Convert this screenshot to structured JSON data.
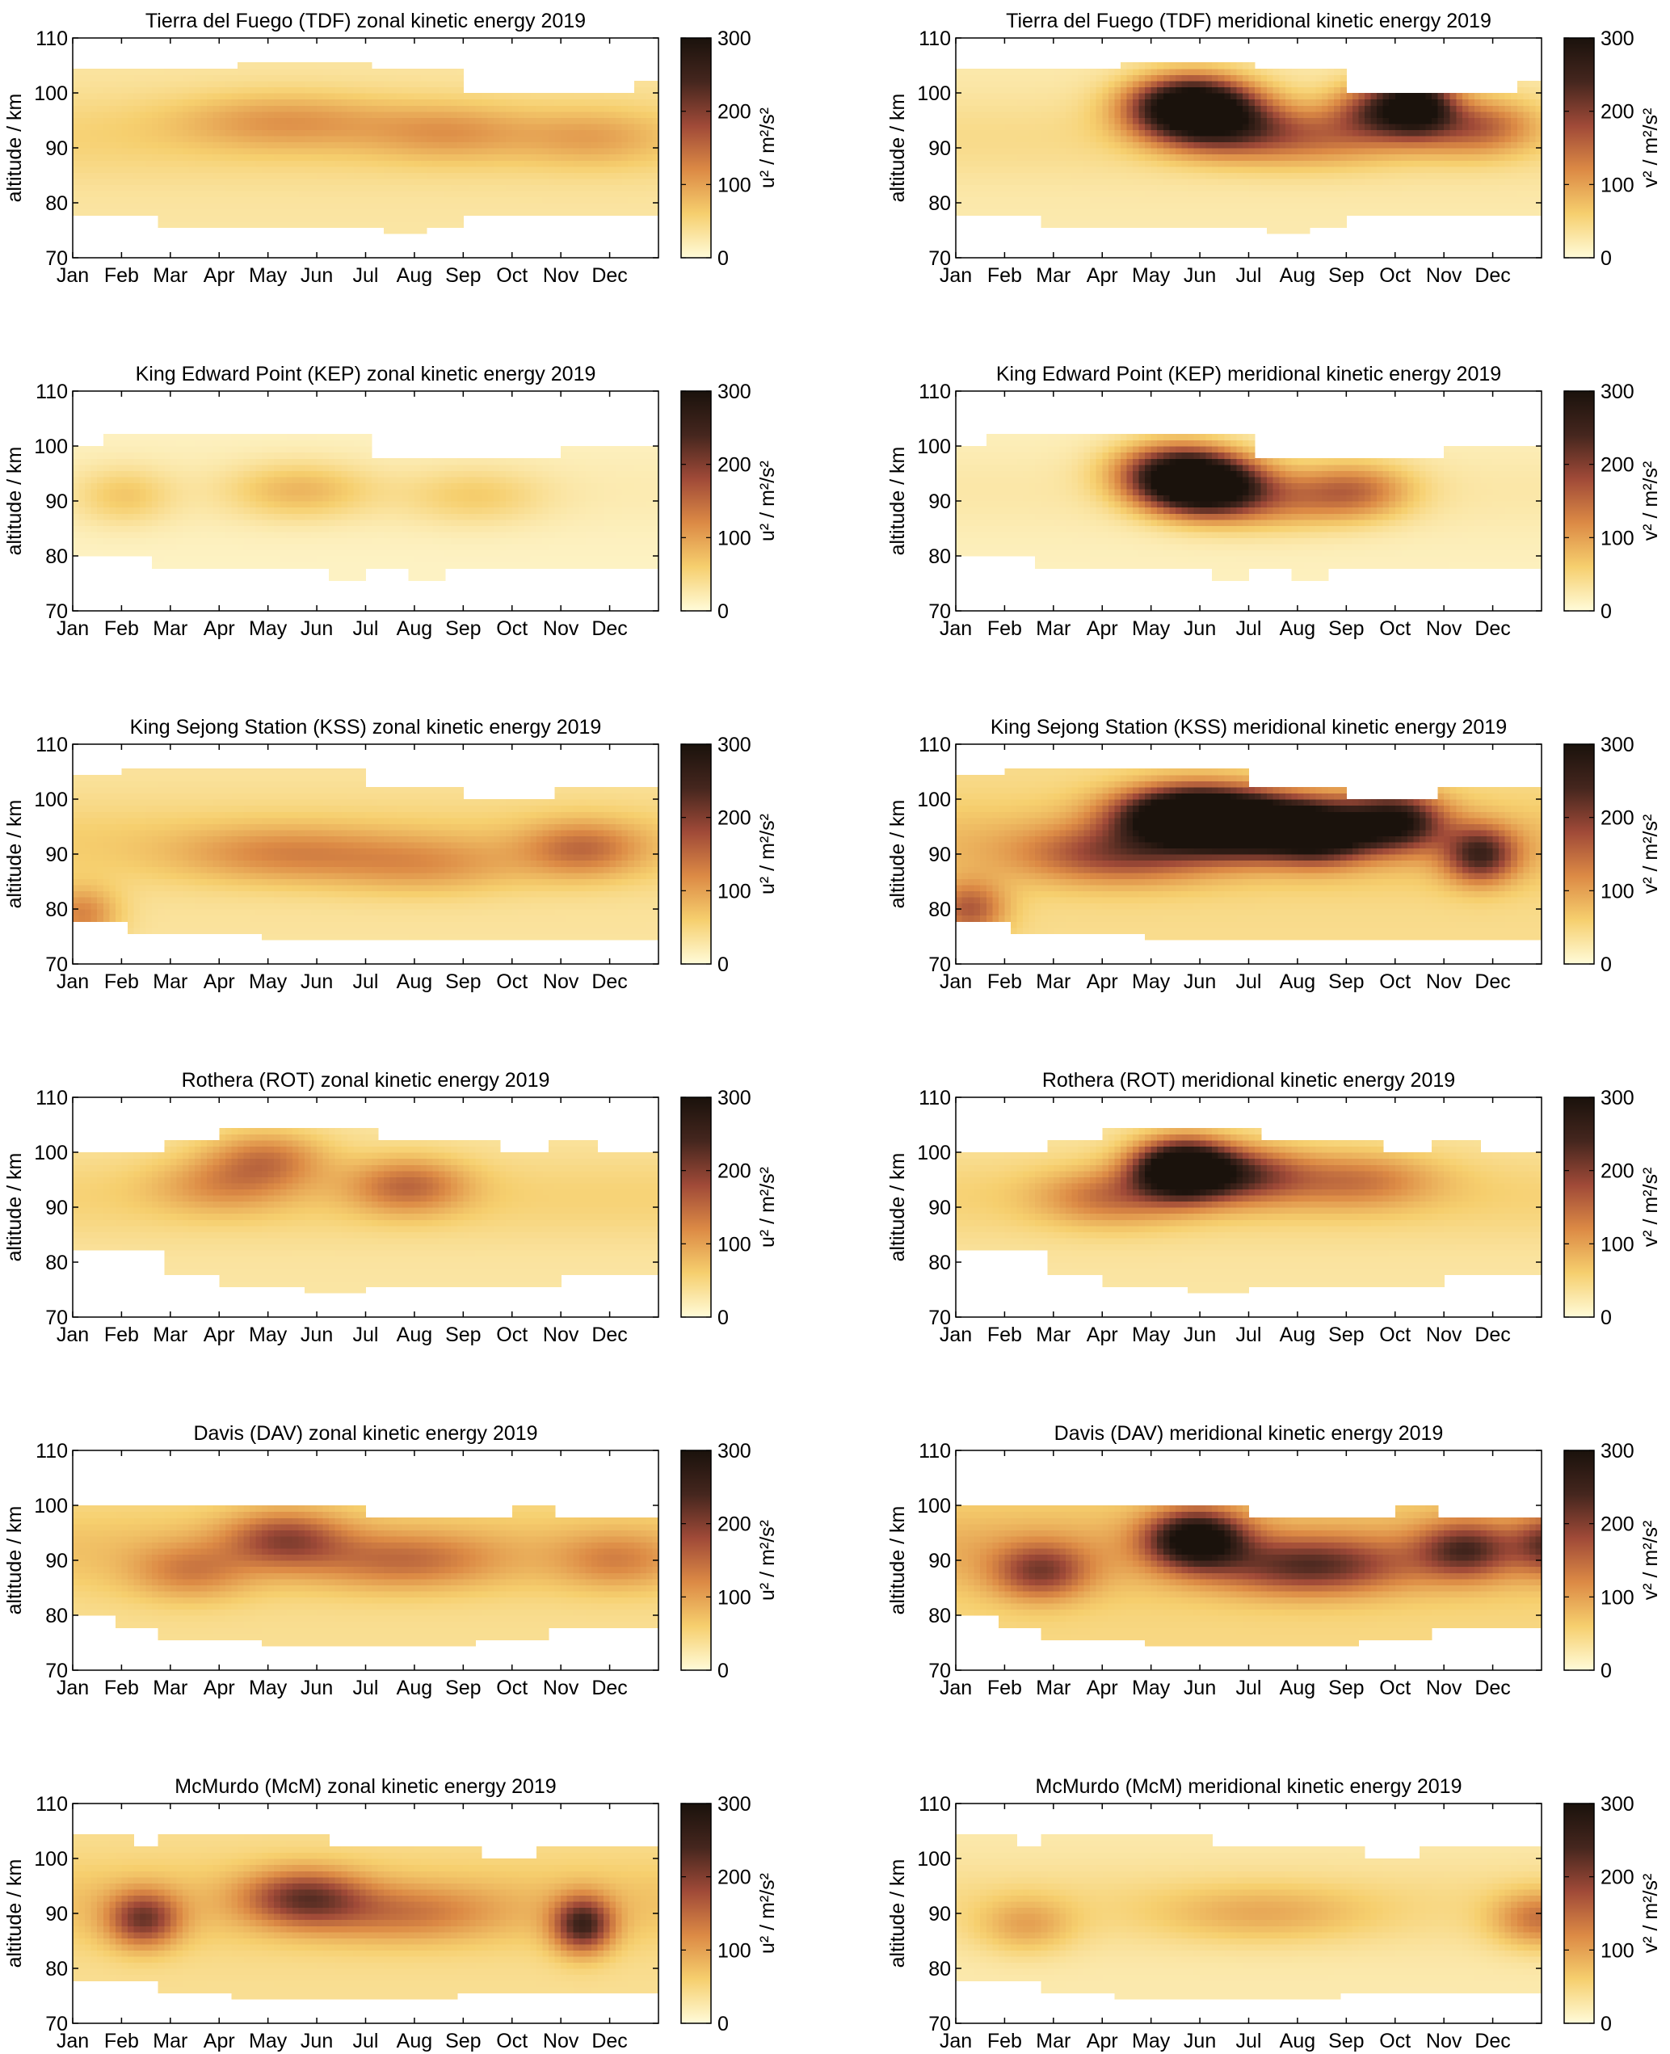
{
  "colorbar": {
    "ticks": [
      "0",
      "100",
      "200",
      "300"
    ],
    "colors": [
      "#fffbd9",
      "#f6cf6e",
      "#dc8a45",
      "#a04a38",
      "#45261e",
      "#1a120c"
    ],
    "range": [
      0,
      300
    ]
  },
  "axes": {
    "ylabel": "altitude / km",
    "yticks": [
      "70",
      "80",
      "90",
      "100",
      "110"
    ],
    "xticks": [
      "Jan",
      "Feb",
      "Mar",
      "Apr",
      "May",
      "Jun",
      "Jul",
      "Aug",
      "Sep",
      "Oct",
      "Nov",
      "Dec"
    ],
    "cb_label_zonal": "u² / m²/s²",
    "cb_label_merid": "v² / m²/s²"
  },
  "chart_data": [
    {
      "type": "heatmap",
      "title": "Tierra del Fuego (TDF) zonal kinetic energy 2019",
      "component": "zonal",
      "ylim": [
        70,
        110
      ],
      "zlim": [
        0,
        300
      ],
      "top": [
        [
          0,
          104
        ],
        [
          3.6,
          106
        ],
        [
          6.5,
          104
        ],
        [
          8.4,
          100
        ],
        [
          12,
          102
        ],
        [
          13,
          104
        ]
      ],
      "bottom": [
        [
          0,
          78
        ],
        [
          2,
          76
        ],
        [
          6.7,
          74
        ],
        [
          7.6,
          76
        ],
        [
          8.4,
          78
        ],
        [
          13,
          78
        ]
      ],
      "blobs": [
        [
          4.5,
          95,
          9,
          60
        ],
        [
          8,
          93,
          7,
          55
        ],
        [
          11,
          92,
          6,
          45
        ]
      ],
      "base": 50
    },
    {
      "type": "heatmap",
      "title": "Tierra del Fuego (TDF) meridional kinetic energy 2019",
      "component": "meridional",
      "ylim": [
        70,
        110
      ],
      "zlim": [
        0,
        300
      ],
      "top": [
        [
          0,
          104
        ],
        [
          3.6,
          106
        ],
        [
          6.5,
          104
        ],
        [
          8.4,
          100
        ],
        [
          12,
          102
        ],
        [
          13,
          104
        ]
      ],
      "bottom": [
        [
          0,
          78
        ],
        [
          2,
          76
        ],
        [
          6.7,
          74
        ],
        [
          7.6,
          76
        ],
        [
          8.4,
          78
        ],
        [
          13,
          78
        ]
      ],
      "blobs": [
        [
          5.0,
          98,
          5,
          320
        ],
        [
          5.5,
          94,
          6,
          150
        ],
        [
          9.0,
          97,
          4,
          160
        ],
        [
          9.8,
          98,
          3,
          220
        ],
        [
          11,
          94,
          5,
          120
        ],
        [
          7.5,
          92,
          8,
          90
        ]
      ],
      "base": 40
    },
    {
      "type": "heatmap",
      "title": "King Edward Point (KEP) zonal kinetic energy 2019",
      "component": "zonal",
      "ylim": [
        70,
        110
      ],
      "zlim": [
        0,
        300
      ],
      "top": [
        [
          0,
          100
        ],
        [
          0.8,
          102
        ],
        [
          3.8,
          102
        ],
        [
          6.5,
          98
        ],
        [
          8.4,
          98
        ],
        [
          10.5,
          100
        ],
        [
          12.7,
          102
        ],
        [
          13,
          102
        ]
      ],
      "bottom": [
        [
          0,
          80
        ],
        [
          1.8,
          78
        ],
        [
          5.6,
          76
        ],
        [
          6.4,
          78
        ],
        [
          7.3,
          76
        ],
        [
          8,
          78
        ],
        [
          13,
          78
        ]
      ],
      "blobs": [
        [
          1.1,
          91,
          4,
          45
        ],
        [
          4.8,
          92,
          6,
          60
        ],
        [
          8.5,
          91,
          6,
          40
        ]
      ],
      "base": 20
    },
    {
      "type": "heatmap",
      "title": "King Edward Point (KEP) meridional kinetic energy 2019",
      "component": "meridional",
      "ylim": [
        70,
        110
      ],
      "zlim": [
        0,
        300
      ],
      "top": [
        [
          0,
          100
        ],
        [
          0.8,
          102
        ],
        [
          3.8,
          102
        ],
        [
          6.5,
          98
        ],
        [
          8.4,
          98
        ],
        [
          10.5,
          100
        ],
        [
          12.7,
          102
        ],
        [
          13,
          102
        ]
      ],
      "bottom": [
        [
          0,
          80
        ],
        [
          1.8,
          78
        ],
        [
          5.6,
          76
        ],
        [
          6.4,
          78
        ],
        [
          7.3,
          76
        ],
        [
          8,
          78
        ],
        [
          13,
          78
        ]
      ],
      "blobs": [
        [
          5.2,
          93,
          5,
          330
        ],
        [
          4.6,
          96,
          5,
          150
        ],
        [
          8.4,
          92,
          5,
          110
        ],
        [
          6.5,
          90,
          7,
          80
        ]
      ],
      "base": 25
    },
    {
      "type": "heatmap",
      "title": "King Sejong Station (KSS) zonal kinetic energy 2019",
      "component": "zonal",
      "ylim": [
        70,
        110
      ],
      "zlim": [
        0,
        300
      ],
      "top": [
        [
          0,
          104
        ],
        [
          1.2,
          106
        ],
        [
          5,
          106
        ],
        [
          6.4,
          102
        ],
        [
          8.4,
          100
        ],
        [
          10.4,
          102
        ],
        [
          13,
          102
        ]
      ],
      "bottom": [
        [
          0,
          78
        ],
        [
          1.3,
          76
        ],
        [
          4.2,
          74
        ],
        [
          6.7,
          74
        ],
        [
          7.5,
          74
        ],
        [
          13,
          78
        ]
      ],
      "blobs": [
        [
          4.5,
          90,
          9,
          65
        ],
        [
          10.8,
          91,
          5,
          90
        ],
        [
          7.5,
          88,
          8,
          55
        ],
        [
          0.2,
          79,
          3,
          90
        ]
      ],
      "base": 55
    },
    {
      "type": "heatmap",
      "title": "King Sejong Station (KSS) meridional kinetic energy 2019",
      "component": "meridional",
      "ylim": [
        70,
        110
      ],
      "zlim": [
        0,
        300
      ],
      "top": [
        [
          0,
          104
        ],
        [
          1.2,
          106
        ],
        [
          5,
          106
        ],
        [
          6.4,
          102
        ],
        [
          8.4,
          100
        ],
        [
          10.4,
          102
        ],
        [
          13,
          102
        ]
      ],
      "bottom": [
        [
          0,
          78
        ],
        [
          1.3,
          76
        ],
        [
          4.2,
          74
        ],
        [
          6.7,
          74
        ],
        [
          7.5,
          74
        ],
        [
          13,
          78
        ]
      ],
      "blobs": [
        [
          5.0,
          97,
          6,
          380
        ],
        [
          6.5,
          95,
          6,
          300
        ],
        [
          7.8,
          94,
          4,
          220
        ],
        [
          9.3,
          96,
          4,
          240
        ],
        [
          11.1,
          90,
          3,
          180
        ],
        [
          3.5,
          90,
          8,
          120
        ],
        [
          0.3,
          80,
          3,
          120
        ]
      ],
      "base": 70
    },
    {
      "type": "heatmap",
      "title": "Rothera (ROT) zonal kinetic energy 2019",
      "component": "zonal",
      "ylim": [
        70,
        110
      ],
      "zlim": [
        0,
        300
      ],
      "top": [
        [
          0,
          100
        ],
        [
          1.9,
          100
        ],
        [
          2,
          102
        ],
        [
          3.2,
          104
        ],
        [
          5.4,
          104
        ],
        [
          6.6,
          102
        ],
        [
          9.2,
          100
        ],
        [
          10.2,
          102
        ],
        [
          11.3,
          100
        ],
        [
          13,
          102
        ]
      ],
      "bottom": [
        [
          0,
          82
        ],
        [
          2,
          82
        ],
        [
          2.1,
          78
        ],
        [
          3.2,
          76
        ],
        [
          5.1,
          74
        ],
        [
          6.4,
          76
        ],
        [
          7.7,
          76
        ],
        [
          10.5,
          78
        ],
        [
          13,
          78
        ]
      ],
      "blobs": [
        [
          4.1,
          99,
          5,
          90
        ],
        [
          7.1,
          94,
          5,
          100
        ],
        [
          3.2,
          94,
          6,
          60
        ]
      ],
      "base": 50
    },
    {
      "type": "heatmap",
      "title": "Rothera (ROT) meridional kinetic energy 2019",
      "component": "meridional",
      "ylim": [
        70,
        110
      ],
      "zlim": [
        0,
        300
      ],
      "top": [
        [
          0,
          100
        ],
        [
          1.9,
          100
        ],
        [
          2,
          102
        ],
        [
          3.2,
          104
        ],
        [
          5.4,
          104
        ],
        [
          6.6,
          102
        ],
        [
          9.2,
          100
        ],
        [
          10.2,
          102
        ],
        [
          11.3,
          100
        ],
        [
          13,
          102
        ]
      ],
      "bottom": [
        [
          0,
          82
        ],
        [
          2,
          82
        ],
        [
          2.1,
          78
        ],
        [
          3.2,
          76
        ],
        [
          5.1,
          74
        ],
        [
          6.4,
          76
        ],
        [
          7.7,
          76
        ],
        [
          10.5,
          78
        ],
        [
          13,
          78
        ]
      ],
      "blobs": [
        [
          4.8,
          97,
          4,
          360
        ],
        [
          6.1,
          96,
          5,
          140
        ],
        [
          8.4,
          95,
          7,
          90
        ],
        [
          3.3,
          92,
          6,
          90
        ]
      ],
      "base": 50
    },
    {
      "type": "heatmap",
      "title": "Davis (DAV) zonal kinetic energy 2019",
      "component": "zonal",
      "ylim": [
        70,
        110
      ],
      "zlim": [
        0,
        300
      ],
      "top": [
        [
          0,
          100
        ],
        [
          6.2,
          100
        ],
        [
          6.4,
          98
        ],
        [
          9.2,
          98
        ],
        [
          9.5,
          100
        ],
        [
          10.3,
          98
        ],
        [
          13,
          98
        ]
      ],
      "bottom": [
        [
          0,
          80
        ],
        [
          1.1,
          78
        ],
        [
          2.0,
          76
        ],
        [
          4.2,
          74
        ],
        [
          7.5,
          74
        ],
        [
          8.7,
          76
        ],
        [
          10.2,
          78
        ],
        [
          12.7,
          80
        ],
        [
          13,
          80
        ]
      ],
      "blobs": [
        [
          4.5,
          94,
          5,
          120
        ],
        [
          7,
          90,
          8,
          80
        ],
        [
          2.5,
          88,
          5,
          70
        ],
        [
          11.5,
          90,
          5,
          60
        ]
      ],
      "base": 65
    },
    {
      "type": "heatmap",
      "title": "Davis (DAV) meridional kinetic energy 2019",
      "component": "meridional",
      "ylim": [
        70,
        110
      ],
      "zlim": [
        0,
        300
      ],
      "top": [
        [
          0,
          100
        ],
        [
          6.2,
          100
        ],
        [
          6.4,
          98
        ],
        [
          9.2,
          98
        ],
        [
          9.5,
          100
        ],
        [
          10.3,
          98
        ],
        [
          13,
          98
        ]
      ],
      "bottom": [
        [
          0,
          80
        ],
        [
          1.1,
          78
        ],
        [
          2.0,
          76
        ],
        [
          4.2,
          74
        ],
        [
          7.5,
          74
        ],
        [
          8.7,
          76
        ],
        [
          10.2,
          78
        ],
        [
          12.7,
          80
        ],
        [
          13,
          80
        ]
      ],
      "blobs": [
        [
          5.1,
          94,
          4,
          270
        ],
        [
          7.5,
          89,
          8,
          150
        ],
        [
          1.8,
          88,
          4,
          130
        ],
        [
          10.8,
          92,
          4,
          150
        ],
        [
          12.6,
          93,
          3,
          140
        ]
      ],
      "base": 80
    },
    {
      "type": "heatmap",
      "title": "McMurdo (McM) zonal kinetic energy 2019",
      "component": "zonal",
      "ylim": [
        70,
        110
      ],
      "zlim": [
        0,
        300
      ],
      "top": [
        [
          0,
          104
        ],
        [
          1.4,
          102
        ],
        [
          2,
          104
        ],
        [
          5.1,
          104
        ],
        [
          5.6,
          102
        ],
        [
          7.6,
          102
        ],
        [
          8.8,
          100
        ],
        [
          10,
          102
        ],
        [
          12.6,
          102
        ],
        [
          13,
          104
        ]
      ],
      "bottom": [
        [
          0,
          78
        ],
        [
          2,
          76
        ],
        [
          3.5,
          74
        ],
        [
          8.2,
          74
        ],
        [
          8.3,
          76
        ],
        [
          13,
          78
        ]
      ],
      "blobs": [
        [
          1.5,
          89,
          3,
          150
        ],
        [
          4.9,
          93,
          5,
          140
        ],
        [
          10.8,
          88,
          2.5,
          190
        ],
        [
          7,
          90,
          8,
          70
        ]
      ],
      "base": 65
    },
    {
      "type": "heatmap",
      "title": "McMurdo (McM) meridional kinetic energy 2019",
      "component": "meridional",
      "ylim": [
        70,
        110
      ],
      "zlim": [
        0,
        300
      ],
      "top": [
        [
          0,
          104
        ],
        [
          1.4,
          102
        ],
        [
          2,
          104
        ],
        [
          5.1,
          104
        ],
        [
          5.6,
          102
        ],
        [
          7.6,
          102
        ],
        [
          8.8,
          100
        ],
        [
          10,
          102
        ],
        [
          12.6,
          102
        ],
        [
          13,
          104
        ]
      ],
      "bottom": [
        [
          0,
          78
        ],
        [
          2,
          76
        ],
        [
          3.5,
          74
        ],
        [
          8.2,
          74
        ],
        [
          8.3,
          76
        ],
        [
          13,
          78
        ]
      ],
      "blobs": [
        [
          12.4,
          89,
          4,
          100
        ],
        [
          1.5,
          88,
          4,
          60
        ],
        [
          6.5,
          90,
          9,
          50
        ]
      ],
      "base": 40
    }
  ]
}
